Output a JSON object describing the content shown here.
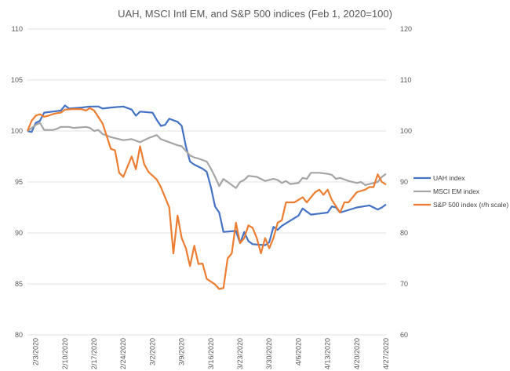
{
  "chart_data": {
    "type": "line",
    "title": "UAH, MSCI Intl EM, and S&P 500 indices (Feb 1, 2020=100)",
    "xlabel": "",
    "ylabel": "",
    "grid": true,
    "legend_position": "right",
    "y_left": {
      "min": 80,
      "max": 110,
      "ticks": [
        "80",
        "85",
        "90",
        "95",
        "100",
        "105",
        "110"
      ]
    },
    "y_right": {
      "min": 60,
      "max": 120,
      "ticks": [
        "60",
        "70",
        "80",
        "90",
        "100",
        "110",
        "120"
      ]
    },
    "x_range": [
      0,
      86
    ],
    "x_ticks": [
      {
        "label": "2/3/2020",
        "x": 2
      },
      {
        "label": "2/10/2020",
        "x": 9
      },
      {
        "label": "2/17/2020",
        "x": 16
      },
      {
        "label": "2/24/2020",
        "x": 23
      },
      {
        "label": "3/2/2020",
        "x": 30
      },
      {
        "label": "3/9/2020",
        "x": 37
      },
      {
        "label": "3/16/2020",
        "x": 44
      },
      {
        "label": "3/23/2020",
        "x": 51
      },
      {
        "label": "3/30/2020",
        "x": 58
      },
      {
        "label": "4/6/2020",
        "x": 65
      },
      {
        "label": "4/13/2020",
        "x": 72
      },
      {
        "label": "4/20/2020",
        "x": 79
      },
      {
        "label": "4/27/2020",
        "x": 86
      }
    ],
    "series": [
      {
        "name": "UAH index",
        "color": "#4472c4",
        "axis": "left",
        "points": [
          [
            0,
            100
          ],
          [
            1,
            99.9
          ],
          [
            2,
            100.8
          ],
          [
            3,
            101
          ],
          [
            4,
            101.8
          ],
          [
            6,
            101.9
          ],
          [
            8,
            102
          ],
          [
            9,
            102.5
          ],
          [
            10,
            102.2
          ],
          [
            13,
            102.3
          ],
          [
            15,
            102.4
          ],
          [
            17,
            102.4
          ],
          [
            18,
            102.2
          ],
          [
            20,
            102.3
          ],
          [
            23,
            102.4
          ],
          [
            25,
            102.1
          ],
          [
            26,
            101.5
          ],
          [
            27,
            101.9
          ],
          [
            30,
            101.8
          ],
          [
            31,
            101.1
          ],
          [
            32,
            100.5
          ],
          [
            33,
            100.6
          ],
          [
            34,
            101.2
          ],
          [
            36,
            100.9
          ],
          [
            37,
            100.5
          ],
          [
            38,
            98.5
          ],
          [
            39,
            97
          ],
          [
            40,
            96.7
          ],
          [
            42,
            96.3
          ],
          [
            43,
            96
          ],
          [
            44,
            94.5
          ],
          [
            45,
            92.6
          ],
          [
            46,
            92
          ],
          [
            47,
            90.1
          ],
          [
            50,
            90.2
          ],
          [
            51,
            89
          ],
          [
            52,
            90.1
          ],
          [
            53,
            89.2
          ],
          [
            54,
            88.9
          ],
          [
            57,
            88.8
          ],
          [
            58,
            89.1
          ],
          [
            59,
            90.6
          ],
          [
            60,
            90.3
          ],
          [
            61,
            90.7
          ],
          [
            63,
            91.2
          ],
          [
            65,
            91.7
          ],
          [
            66,
            92.4
          ],
          [
            67,
            92.1
          ],
          [
            68,
            91.8
          ],
          [
            70,
            91.9
          ],
          [
            72,
            92
          ],
          [
            73,
            92.6
          ],
          [
            74,
            92.5
          ],
          [
            75,
            92
          ],
          [
            79,
            92.5
          ],
          [
            82,
            92.7
          ],
          [
            84,
            92.3
          ],
          [
            85,
            92.5
          ],
          [
            86,
            92.8
          ]
        ]
      },
      {
        "name": "MSCI EM index",
        "color": "#a5a5a5",
        "axis": "left",
        "points": [
          [
            0,
            100
          ],
          [
            1,
            100.3
          ],
          [
            2,
            100.6
          ],
          [
            3,
            100.8
          ],
          [
            4,
            100.1
          ],
          [
            6,
            100.1
          ],
          [
            7,
            100.2
          ],
          [
            8,
            100.4
          ],
          [
            10,
            100.4
          ],
          [
            11,
            100.3
          ],
          [
            14,
            100.4
          ],
          [
            15,
            100.3
          ],
          [
            16,
            100
          ],
          [
            17,
            100.1
          ],
          [
            18,
            99.7
          ],
          [
            20,
            99.4
          ],
          [
            22,
            99.2
          ],
          [
            23,
            99.1
          ],
          [
            25,
            99.2
          ],
          [
            27,
            98.9
          ],
          [
            29,
            99.3
          ],
          [
            31,
            99.6
          ],
          [
            32,
            99.2
          ],
          [
            34,
            98.9
          ],
          [
            36,
            98.6
          ],
          [
            37,
            98.5
          ],
          [
            39,
            97.6
          ],
          [
            40,
            97.4
          ],
          [
            41,
            97.3
          ],
          [
            43,
            97
          ],
          [
            44,
            96.3
          ],
          [
            45,
            95.5
          ],
          [
            46,
            94.6
          ],
          [
            47,
            95.3
          ],
          [
            48,
            95
          ],
          [
            50,
            94.4
          ],
          [
            51,
            95
          ],
          [
            52,
            95.2
          ],
          [
            53,
            95.6
          ],
          [
            55,
            95.5
          ],
          [
            57,
            95.1
          ],
          [
            59,
            95.3
          ],
          [
            60,
            95.2
          ],
          [
            61,
            94.9
          ],
          [
            62,
            95.1
          ],
          [
            63,
            94.8
          ],
          [
            65,
            94.9
          ],
          [
            66,
            95.4
          ],
          [
            67,
            95.3
          ],
          [
            68,
            95.9
          ],
          [
            70,
            95.9
          ],
          [
            72,
            95.8
          ],
          [
            73,
            95.7
          ],
          [
            74,
            95.3
          ],
          [
            75,
            95.4
          ],
          [
            77,
            95.1
          ],
          [
            79,
            94.9
          ],
          [
            80,
            95
          ],
          [
            81,
            94.7
          ],
          [
            83,
            94.9
          ],
          [
            84,
            95
          ],
          [
            85,
            95.5
          ],
          [
            86,
            95.8
          ]
        ]
      },
      {
        "name": "S&P 500 index (r/h scale)",
        "color": "#ed7d31",
        "axis": "right",
        "points": [
          [
            0,
            100
          ],
          [
            1,
            102
          ],
          [
            2,
            103
          ],
          [
            3,
            103.3
          ],
          [
            4,
            102.8
          ],
          [
            5,
            103
          ],
          [
            6,
            103.3
          ],
          [
            7,
            103.5
          ],
          [
            8,
            103.6
          ],
          [
            9,
            104.2
          ],
          [
            11,
            104.3
          ],
          [
            13,
            104.3
          ],
          [
            14,
            104
          ],
          [
            15,
            104.5
          ],
          [
            16,
            104
          ],
          [
            18,
            101.5
          ],
          [
            19,
            99
          ],
          [
            20,
            96.5
          ],
          [
            21,
            96.2
          ],
          [
            22,
            91.8
          ],
          [
            23,
            91
          ],
          [
            24,
            93
          ],
          [
            25,
            95
          ],
          [
            26,
            92.5
          ],
          [
            27,
            97
          ],
          [
            28,
            93.5
          ],
          [
            29,
            92
          ],
          [
            31,
            90.5
          ],
          [
            32,
            89
          ],
          [
            34,
            85
          ],
          [
            35,
            76
          ],
          [
            36,
            83.4
          ],
          [
            37,
            79
          ],
          [
            38,
            77
          ],
          [
            39,
            73.5
          ],
          [
            40,
            77.5
          ],
          [
            41,
            73.9
          ],
          [
            42,
            74
          ],
          [
            43,
            71
          ],
          [
            45,
            69.9
          ],
          [
            46,
            69
          ],
          [
            47,
            69.2
          ],
          [
            48,
            75
          ],
          [
            49,
            76
          ],
          [
            50,
            82
          ],
          [
            51,
            78
          ],
          [
            52,
            79
          ],
          [
            53,
            81.5
          ],
          [
            54,
            81
          ],
          [
            55,
            79
          ],
          [
            56,
            76
          ],
          [
            57,
            79
          ],
          [
            58,
            77
          ],
          [
            59,
            79
          ],
          [
            60,
            82
          ],
          [
            61,
            82.5
          ],
          [
            62,
            86
          ],
          [
            63,
            86
          ],
          [
            64,
            86
          ],
          [
            65,
            86.5
          ],
          [
            66,
            87
          ],
          [
            67,
            86
          ],
          [
            68,
            87
          ],
          [
            69,
            88
          ],
          [
            70,
            88.5
          ],
          [
            71,
            87.5
          ],
          [
            72,
            88.5
          ],
          [
            73,
            86.5
          ],
          [
            75,
            84
          ],
          [
            76,
            86
          ],
          [
            77,
            86
          ],
          [
            78,
            87
          ],
          [
            79,
            88
          ],
          [
            81,
            88.5
          ],
          [
            82,
            89
          ],
          [
            83,
            89
          ],
          [
            84,
            91.5
          ],
          [
            85,
            90
          ],
          [
            86,
            89.5
          ]
        ]
      }
    ]
  }
}
